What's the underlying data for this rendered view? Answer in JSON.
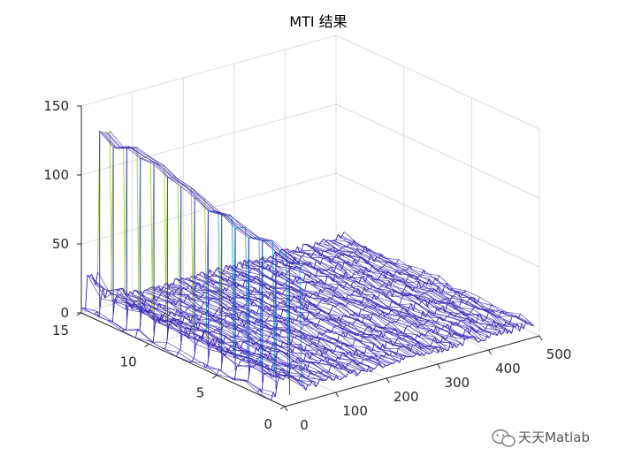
{
  "chart_data": {
    "type": "surface-mesh",
    "title": "MTI 结果",
    "xlabel": "",
    "ylabel": "",
    "zlabel": "",
    "xlim": [
      0,
      500
    ],
    "ylim": [
      0,
      15
    ],
    "zlim": [
      0,
      150
    ],
    "x_ticks": [
      "0",
      "100",
      "200",
      "300",
      "400",
      "500"
    ],
    "y_ticks": [
      "0",
      "5",
      "10",
      "15"
    ],
    "z_ticks": [
      "0",
      "50",
      "100",
      "150"
    ],
    "grid": true,
    "colormap": [
      "#3a1fa8",
      "#2d6fe8",
      "#1fb3c0",
      "#9fd03a",
      "#f7c81a"
    ],
    "target_range_bins": [
      33,
      55
    ],
    "target_peak_by_pulse": [
      {
        "pulse": 15,
        "peak": 128
      },
      {
        "pulse": 14,
        "peak": 121
      },
      {
        "pulse": 13,
        "peak": 126
      },
      {
        "pulse": 12,
        "peak": 123
      },
      {
        "pulse": 11,
        "peak": 122
      },
      {
        "pulse": 10,
        "peak": 117
      },
      {
        "pulse": 9,
        "peak": 116
      },
      {
        "pulse": 8,
        "peak": 112
      },
      {
        "pulse": 7,
        "peak": 107
      },
      {
        "pulse": 6,
        "peak": 108
      },
      {
        "pulse": 5,
        "peak": 104
      },
      {
        "pulse": 4,
        "peak": 101
      },
      {
        "pulse": 3,
        "peak": 103
      },
      {
        "pulse": 2,
        "peak": 99
      },
      {
        "pulse": 1,
        "peak": 96
      }
    ],
    "clutter_ridge_by_pulse": [
      {
        "pulse": 15,
        "value": 28
      },
      {
        "pulse": 14,
        "value": 22
      },
      {
        "pulse": 13,
        "value": 26
      },
      {
        "pulse": 12,
        "value": 21
      },
      {
        "pulse": 11,
        "value": 24
      },
      {
        "pulse": 10,
        "value": 19
      },
      {
        "pulse": 9,
        "value": 22
      },
      {
        "pulse": 8,
        "value": 18
      },
      {
        "pulse": 7,
        "value": 20
      },
      {
        "pulse": 6,
        "value": 17
      },
      {
        "pulse": 5,
        "value": 19
      },
      {
        "pulse": 4,
        "value": 16
      },
      {
        "pulse": 3,
        "value": 18
      },
      {
        "pulse": 2,
        "value": 15
      },
      {
        "pulse": 1,
        "value": 17
      }
    ],
    "noise_floor_max": 6
  },
  "watermark": {
    "text": "天天Matlab",
    "icon": "wechat-icon"
  }
}
